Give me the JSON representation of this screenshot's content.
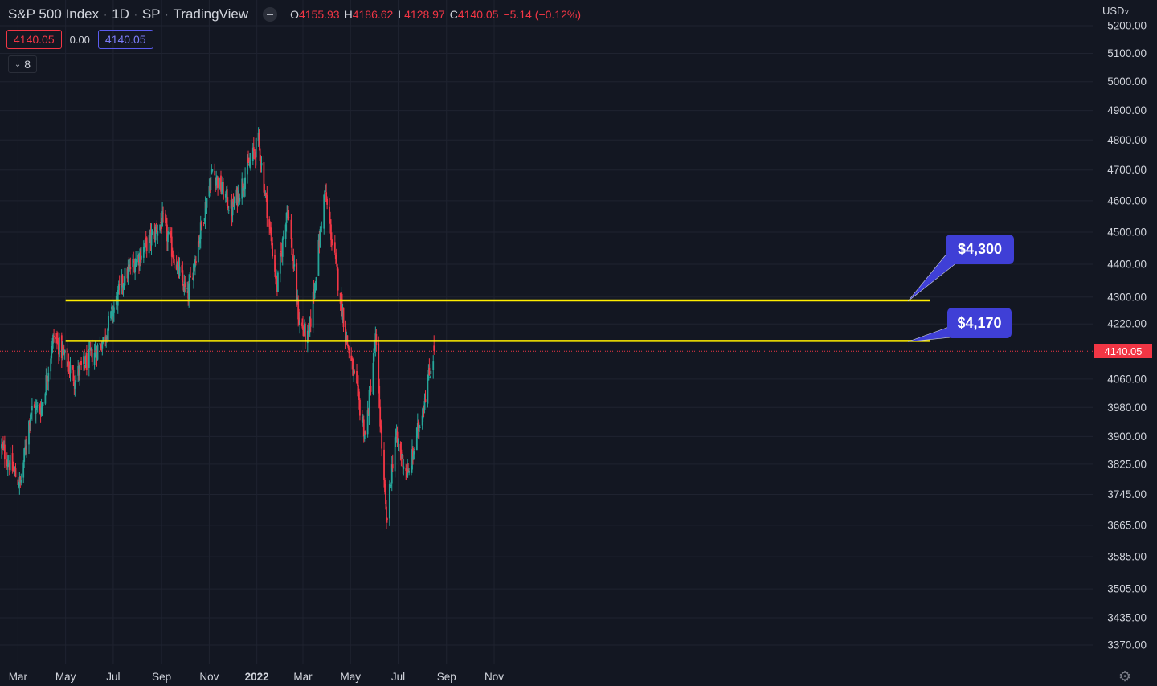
{
  "header": {
    "symbol": "S&P 500 Index",
    "interval": "1D",
    "exchange": "SP",
    "source": "TradingView",
    "ohlc": {
      "o_label": "O",
      "o_value": "4155.93",
      "h_label": "H",
      "h_value": "4186.62",
      "l_label": "L",
      "l_value": "4128.97",
      "c_label": "C",
      "c_value": "4140.05",
      "change": "−5.14 (−0.12%)"
    },
    "bid": "4140.05",
    "spread": "0.00",
    "ask": "4140.05",
    "indicator_count": "8",
    "currency": "USD"
  },
  "colors": {
    "background": "#131722",
    "up": "#26a69a",
    "down": "#f23645",
    "level_line": "#ffee00",
    "callout": "#3f3fd6"
  },
  "chart_data": {
    "type": "candlestick",
    "y_scale": "log",
    "y_ticks": [
      "5200.00",
      "5100.00",
      "5000.00",
      "4900.00",
      "4800.00",
      "4700.00",
      "4600.00",
      "4500.00",
      "4400.00",
      "4300.00",
      "4220.00",
      "4060.00",
      "3980.00",
      "3900.00",
      "3825.00",
      "3745.00",
      "3665.00",
      "3585.00",
      "3505.00",
      "3435.00",
      "3370.00"
    ],
    "x_ticks": [
      "Mar",
      "May",
      "Jul",
      "Sep",
      "Nov",
      "2022",
      "Mar",
      "May",
      "Jul",
      "Sep",
      "Nov"
    ],
    "last_price": "4140.05",
    "levels": [
      {
        "label": "$4,300",
        "value": 4290
      },
      {
        "label": "$4,170",
        "value": 4170
      }
    ],
    "series_trend": [
      {
        "date": "2021-02-08",
        "close": 3870
      },
      {
        "date": "2021-03-04",
        "close": 3770
      },
      {
        "date": "2021-03-17",
        "close": 3970
      },
      {
        "date": "2021-03-31",
        "close": 3980
      },
      {
        "date": "2021-04-16",
        "close": 4185
      },
      {
        "date": "2021-05-12",
        "close": 4065
      },
      {
        "date": "2021-06-18",
        "close": 4170
      },
      {
        "date": "2021-07-15",
        "close": 4360
      },
      {
        "date": "2021-09-02",
        "close": 4535
      },
      {
        "date": "2021-10-04",
        "close": 4300
      },
      {
        "date": "2021-11-05",
        "close": 4700
      },
      {
        "date": "2021-11-30",
        "close": 4570
      },
      {
        "date": "2022-01-03",
        "close": 4796
      },
      {
        "date": "2022-01-27",
        "close": 4330
      },
      {
        "date": "2022-02-09",
        "close": 4590
      },
      {
        "date": "2022-02-24",
        "close": 4230
      },
      {
        "date": "2022-03-08",
        "close": 4170
      },
      {
        "date": "2022-03-29",
        "close": 4630
      },
      {
        "date": "2022-04-26",
        "close": 4175
      },
      {
        "date": "2022-05-20",
        "close": 3900
      },
      {
        "date": "2022-06-02",
        "close": 4175
      },
      {
        "date": "2022-06-16",
        "close": 3665
      },
      {
        "date": "2022-06-27",
        "close": 3900
      },
      {
        "date": "2022-07-14",
        "close": 3790
      },
      {
        "date": "2022-08-16",
        "close": 4140
      }
    ]
  }
}
